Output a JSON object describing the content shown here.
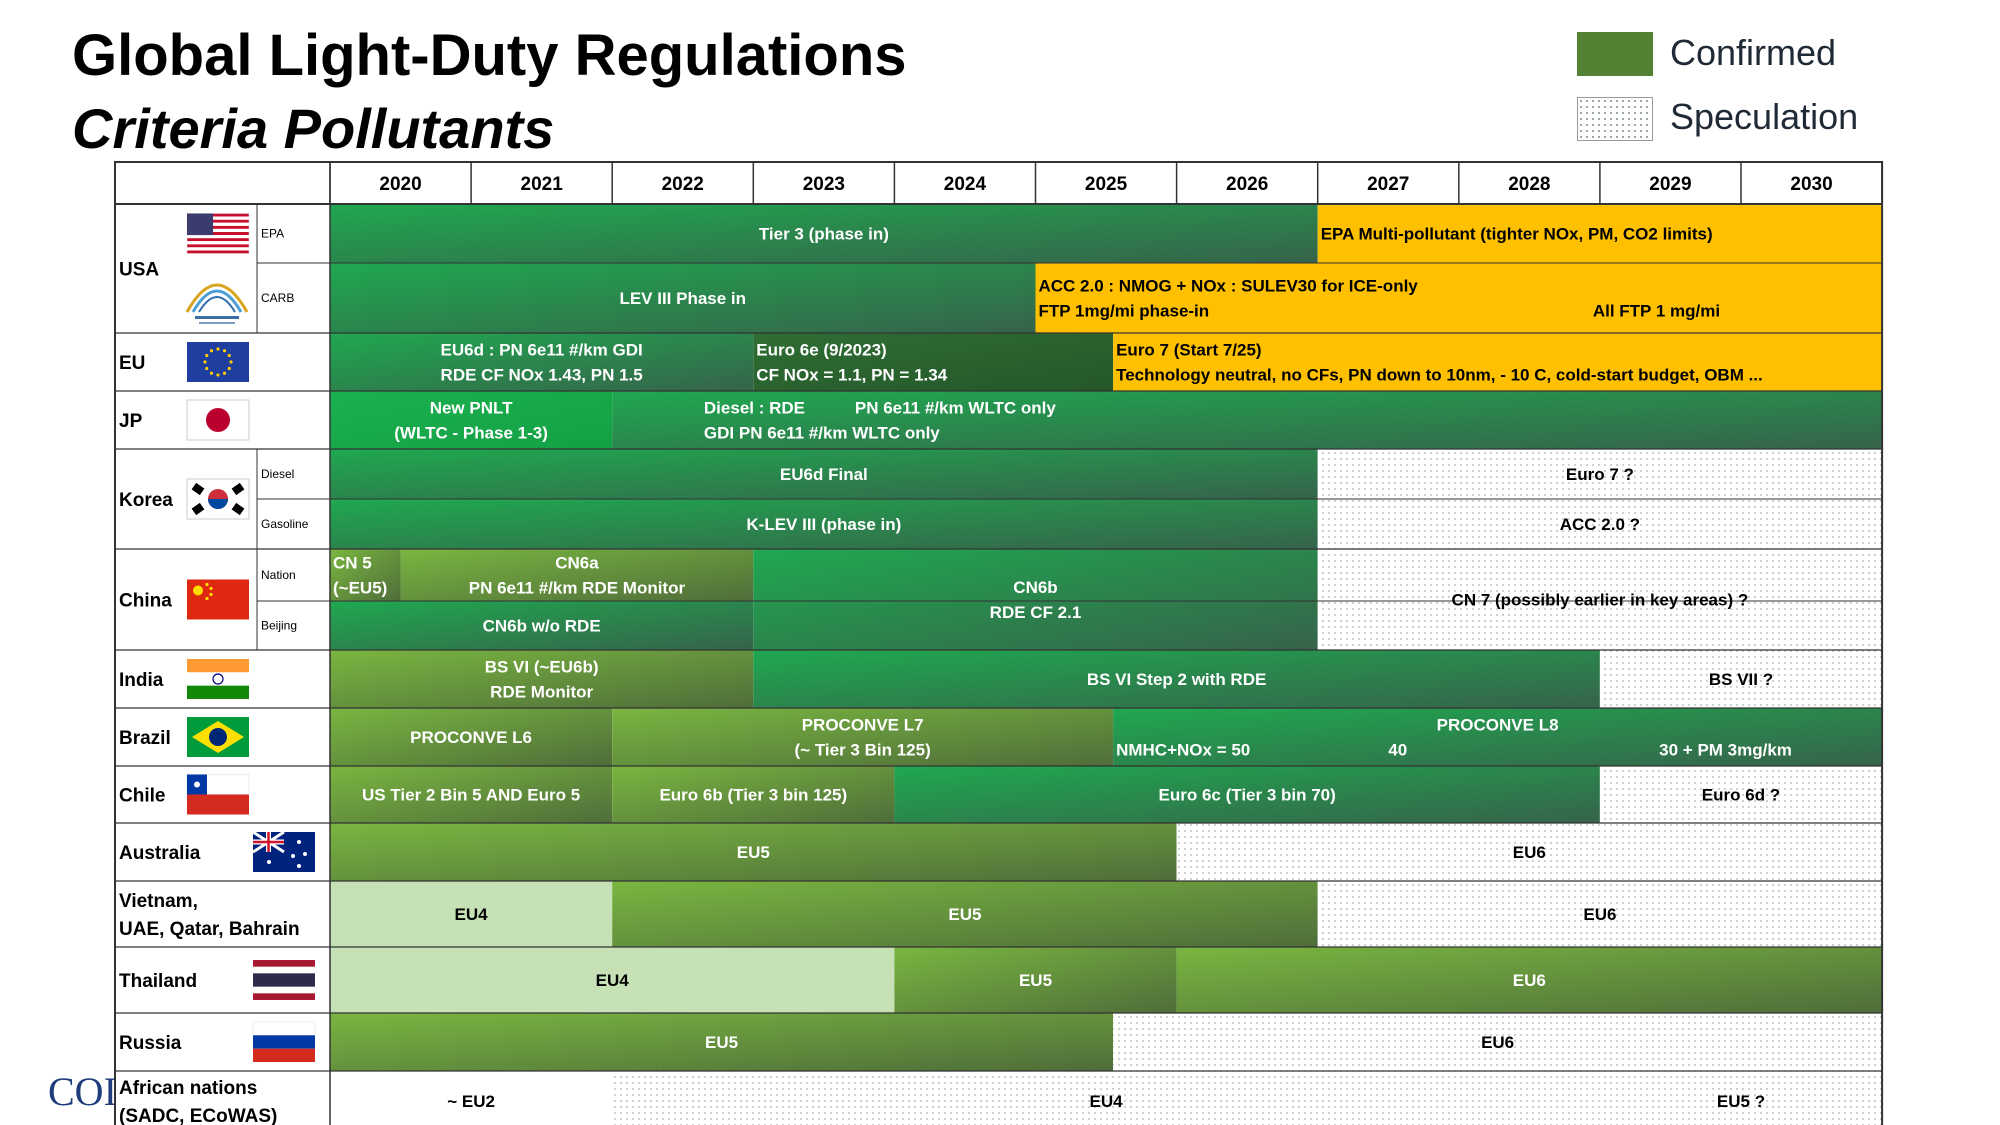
{
  "header": {
    "title": "Global Light-Duty Regulations",
    "subtitle": "Criteria Pollutants"
  },
  "legend": [
    {
      "label": "Confirmed",
      "color": "#548235"
    },
    {
      "label": "Speculation",
      "pattern": "dots"
    }
  ],
  "logo_text": "COI",
  "colors": {
    "confirmed_dark": "#2e6b3a",
    "confirmed_green": "#1ea84a",
    "olive": "#6e9a35",
    "light_green": "#c5e0b4",
    "yellow": "#ffc000",
    "speculation": "dotted"
  },
  "chart_data": {
    "type": "timeline",
    "years": [
      "2020",
      "2021",
      "2022",
      "2023",
      "2024",
      "2025",
      "2026",
      "2027",
      "2028",
      "2029",
      "2030"
    ],
    "regions": [
      {
        "id": "usa",
        "label": [
          "USA"
        ],
        "flag": "us-flag",
        "rows": [
          {
            "sub": "EPA"
          },
          {
            "sub": "CARB"
          }
        ]
      },
      {
        "id": "eu",
        "label": [
          "EU"
        ],
        "flag": "eu-flag",
        "rows": [
          {
            "sub": ""
          }
        ]
      },
      {
        "id": "jp",
        "label": [
          "JP"
        ],
        "flag": "jp-flag",
        "rows": [
          {
            "sub": ""
          }
        ]
      },
      {
        "id": "korea",
        "label": [
          "Korea"
        ],
        "flag": "kr-flag",
        "rows": [
          {
            "sub": "Diesel"
          },
          {
            "sub": "Gasoline"
          }
        ]
      },
      {
        "id": "china",
        "label": [
          "China"
        ],
        "flag": "cn-flag",
        "rows": [
          {
            "sub": "Nation"
          },
          {
            "sub": "Beijing"
          }
        ]
      },
      {
        "id": "india",
        "label": [
          "India"
        ],
        "flag": "in-flag",
        "rows": [
          {
            "sub": ""
          }
        ]
      },
      {
        "id": "brazil",
        "label": [
          "Brazil"
        ],
        "flag": "br-flag",
        "rows": [
          {
            "sub": ""
          }
        ]
      },
      {
        "id": "chile",
        "label": [
          "Chile"
        ],
        "flag": "cl-flag",
        "rows": [
          {
            "sub": ""
          }
        ]
      },
      {
        "id": "australia",
        "label": [
          "Australia"
        ],
        "flag": "au-flag",
        "rows": [
          {
            "sub": ""
          }
        ]
      },
      {
        "id": "vietnam",
        "label": [
          "Vietnam,",
          "UAE, Qatar, Bahrain"
        ],
        "flag": "",
        "rows": [
          {
            "sub": ""
          }
        ]
      },
      {
        "id": "thailand",
        "label": [
          "Thailand"
        ],
        "flag": "th-flag",
        "rows": [
          {
            "sub": ""
          }
        ]
      },
      {
        "id": "russia",
        "label": [
          "Russia"
        ],
        "flag": "ru-flag",
        "rows": [
          {
            "sub": ""
          }
        ]
      },
      {
        "id": "africa",
        "label": [
          "African nations",
          "(SADC, ECoWAS)"
        ],
        "flag": "",
        "rows": [
          {
            "sub": ""
          }
        ]
      }
    ],
    "bars": [
      {
        "region": "usa",
        "row": 0,
        "rowspan": 1,
        "start": 2020,
        "end": 2027,
        "style": "confirmed",
        "align": "center",
        "lines": [
          "Tier 3 (phase in)"
        ]
      },
      {
        "region": "usa",
        "row": 0,
        "rowspan": 1,
        "start": 2027,
        "end": 2031,
        "style": "yellow",
        "align": "left",
        "lines": [
          "EPA Multi-pollutant (tighter NOx, PM, CO2 limits)"
        ]
      },
      {
        "region": "usa",
        "row": 1,
        "rowspan": 1,
        "start": 2020,
        "end": 2025,
        "style": "confirmed",
        "align": "center",
        "lines": [
          "LEV III Phase in"
        ]
      },
      {
        "region": "usa",
        "row": 1,
        "rowspan": 1,
        "start": 2025,
        "end": 2031,
        "style": "yellow",
        "align": "left",
        "lines": [
          "ACC 2.0 : NMOG + NOx : SULEV30 for ICE-only",
          "FTP 1mg/mi phase-in"
        ]
      },
      {
        "region": "usa",
        "row": 1,
        "rowspan": 1,
        "start": 2025,
        "end": 2031,
        "style": "overlay",
        "align": "left",
        "textYear": 2028.95,
        "lines": [
          "",
          "All FTP 1 mg/mi"
        ]
      },
      {
        "region": "eu",
        "row": 0,
        "rowspan": 1,
        "start": 2020,
        "end": 2023,
        "style": "confirmed",
        "align": "center",
        "lines": [
          "EU6d : PN 6e11 #/km GDI",
          "RDE CF NOx 1.43, PN 1.5"
        ]
      },
      {
        "region": "eu",
        "row": 0,
        "rowspan": 1,
        "start": 2023,
        "end": 2025.55,
        "style": "dark",
        "align": "left",
        "lines": [
          "Euro 6e (9/2023)",
          "CF NOx = 1.1, PN = 1.34"
        ]
      },
      {
        "region": "eu",
        "row": 0,
        "rowspan": 1,
        "start": 2025.55,
        "end": 2031,
        "style": "yellow",
        "align": "left",
        "lines": [
          "Euro 7 (Start 7/25)",
          "Technology neutral, no CFs, PN down to 10nm, - 10 C, cold-start budget, OBM ..."
        ]
      },
      {
        "region": "jp",
        "row": 0,
        "rowspan": 1,
        "start": 2020,
        "end": 2022,
        "style": "bright",
        "align": "center",
        "lines": [
          "New PNLT",
          "(WLTC - Phase 1-3)"
        ]
      },
      {
        "region": "jp",
        "row": 0,
        "rowspan": 1,
        "start": 2022,
        "end": 2031,
        "style": "confirmed",
        "align": "left",
        "textYear": 2022.65,
        "lines": [
          "Diesel : RDE",
          "GDI PN 6e11 #/km WLTC only"
        ]
      },
      {
        "region": "jp",
        "row": 0,
        "rowspan": 1,
        "start": 2022,
        "end": 2031,
        "style": "overlay",
        "align": "left",
        "textYear": 2023.72,
        "lines": [
          "PN 6e11 #/km WLTC only",
          ""
        ]
      },
      {
        "region": "korea",
        "row": 0,
        "rowspan": 1,
        "start": 2020,
        "end": 2027,
        "style": "confirmed",
        "align": "center",
        "lines": [
          "EU6d Final"
        ]
      },
      {
        "region": "korea",
        "row": 0,
        "rowspan": 1,
        "start": 2027,
        "end": 2031,
        "style": "speculation",
        "align": "center",
        "lines": [
          "Euro 7 ?"
        ]
      },
      {
        "region": "korea",
        "row": 1,
        "rowspan": 1,
        "start": 2020,
        "end": 2027,
        "style": "confirmed",
        "align": "center",
        "lines": [
          "K-LEV III (phase in)"
        ]
      },
      {
        "region": "korea",
        "row": 1,
        "rowspan": 1,
        "start": 2027,
        "end": 2031,
        "style": "speculation",
        "align": "center",
        "lines": [
          "ACC 2.0 ?"
        ]
      },
      {
        "region": "china",
        "row": 0,
        "rowspan": 1,
        "start": 2020,
        "end": 2020.5,
        "style": "olive",
        "align": "left",
        "lines": [
          "CN 5",
          "(~EU5)"
        ]
      },
      {
        "region": "china",
        "row": 0,
        "rowspan": 1,
        "start": 2020.5,
        "end": 2023,
        "style": "olive",
        "align": "center",
        "lines": [
          "CN6a",
          "PN 6e11 #/km RDE Monitor"
        ]
      },
      {
        "region": "china",
        "row": 1,
        "rowspan": 1,
        "start": 2020,
        "end": 2023,
        "style": "confirmed",
        "align": "center",
        "lines": [
          "CN6b w/o RDE"
        ]
      },
      {
        "region": "china",
        "row": 0,
        "rowspan": 2,
        "start": 2023,
        "end": 2027,
        "style": "confirmed",
        "align": "center",
        "lines": [
          "CN6b",
          "RDE CF 2.1"
        ]
      },
      {
        "region": "china",
        "row": 0,
        "rowspan": 2,
        "start": 2027,
        "end": 2031,
        "style": "speculation",
        "align": "center",
        "lines": [
          "CN 7 (possibly earlier in key areas) ?"
        ]
      },
      {
        "region": "india",
        "row": 0,
        "rowspan": 1,
        "start": 2020,
        "end": 2023,
        "style": "olive",
        "align": "center",
        "lines": [
          "BS VI (~EU6b)",
          "RDE Monitor"
        ]
      },
      {
        "region": "india",
        "row": 0,
        "rowspan": 1,
        "start": 2023,
        "end": 2029,
        "style": "confirmed",
        "align": "center",
        "lines": [
          "BS VI Step 2 with RDE"
        ]
      },
      {
        "region": "india",
        "row": 0,
        "rowspan": 1,
        "start": 2029,
        "end": 2031,
        "style": "speculation",
        "align": "center",
        "lines": [
          "BS VII ?"
        ]
      },
      {
        "region": "brazil",
        "row": 0,
        "rowspan": 1,
        "start": 2020,
        "end": 2022,
        "style": "olive",
        "align": "center",
        "lines": [
          "PROCONVE L6"
        ]
      },
      {
        "region": "brazil",
        "row": 0,
        "rowspan": 1,
        "start": 2022,
        "end": 2025.55,
        "style": "olive",
        "align": "center",
        "lines": [
          "PROCONVE L7",
          "(~ Tier 3 Bin 125)"
        ]
      },
      {
        "region": "brazil",
        "row": 0,
        "rowspan": 1,
        "start": 2025.55,
        "end": 2031,
        "style": "confirmed",
        "align": "center",
        "lines": [
          "PROCONVE L8",
          ""
        ]
      },
      {
        "region": "brazil",
        "row": 0,
        "rowspan": 1,
        "start": 2025.55,
        "end": 2031,
        "style": "overlay",
        "align": "left",
        "lines": [
          "",
          "NMHC+NOx = 50"
        ]
      },
      {
        "region": "brazil",
        "row": 0,
        "rowspan": 1,
        "start": 2025.55,
        "end": 2031,
        "style": "overlay",
        "align": "left",
        "textYear": 2027.5,
        "lines": [
          "",
          "40"
        ]
      },
      {
        "region": "brazil",
        "row": 0,
        "rowspan": 1,
        "start": 2025.55,
        "end": 2031,
        "style": "overlay",
        "align": "left",
        "textYear": 2029.42,
        "lines": [
          "",
          "30  + PM 3mg/km"
        ]
      },
      {
        "region": "chile",
        "row": 0,
        "rowspan": 1,
        "start": 2020,
        "end": 2022,
        "style": "olive",
        "align": "center",
        "lines": [
          "US Tier 2 Bin 5  AND Euro 5"
        ]
      },
      {
        "region": "chile",
        "row": 0,
        "rowspan": 1,
        "start": 2022,
        "end": 2024,
        "style": "olive",
        "align": "center",
        "lines": [
          "Euro 6b (Tier 3 bin 125)"
        ]
      },
      {
        "region": "chile",
        "row": 0,
        "rowspan": 1,
        "start": 2024,
        "end": 2029,
        "style": "confirmed",
        "align": "center",
        "lines": [
          "Euro 6c (Tier 3 bin 70)"
        ]
      },
      {
        "region": "chile",
        "row": 0,
        "rowspan": 1,
        "start": 2029,
        "end": 2031,
        "style": "speculation",
        "align": "center",
        "lines": [
          "Euro 6d ?"
        ]
      },
      {
        "region": "australia",
        "row": 0,
        "rowspan": 1,
        "start": 2020,
        "end": 2026,
        "style": "olive",
        "align": "center",
        "lines": [
          "EU5"
        ]
      },
      {
        "region": "australia",
        "row": 0,
        "rowspan": 1,
        "start": 2026,
        "end": 2031,
        "style": "speculation",
        "align": "center",
        "lines": [
          "EU6"
        ]
      },
      {
        "region": "vietnam",
        "row": 0,
        "rowspan": 1,
        "start": 2020,
        "end": 2022,
        "style": "light",
        "align": "center",
        "lines": [
          "EU4"
        ]
      },
      {
        "region": "vietnam",
        "row": 0,
        "rowspan": 1,
        "start": 2022,
        "end": 2027,
        "style": "olive",
        "align": "center",
        "lines": [
          "EU5"
        ]
      },
      {
        "region": "vietnam",
        "row": 0,
        "rowspan": 1,
        "start": 2027,
        "end": 2031,
        "style": "speculation",
        "align": "center",
        "lines": [
          "EU6"
        ]
      },
      {
        "region": "thailand",
        "row": 0,
        "rowspan": 1,
        "start": 2020,
        "end": 2024,
        "style": "light",
        "align": "center",
        "lines": [
          "EU4"
        ]
      },
      {
        "region": "thailand",
        "row": 0,
        "rowspan": 1,
        "start": 2024,
        "end": 2026,
        "style": "olive",
        "align": "center",
        "lines": [
          "EU5"
        ]
      },
      {
        "region": "thailand",
        "row": 0,
        "rowspan": 1,
        "start": 2026,
        "end": 2031,
        "style": "olive",
        "align": "center",
        "lines": [
          "EU6"
        ]
      },
      {
        "region": "russia",
        "row": 0,
        "rowspan": 1,
        "start": 2020,
        "end": 2025.55,
        "style": "olive",
        "align": "center",
        "lines": [
          "EU5"
        ]
      },
      {
        "region": "russia",
        "row": 0,
        "rowspan": 1,
        "start": 2025.55,
        "end": 2031,
        "style": "speculation",
        "align": "center",
        "lines": [
          "EU6"
        ]
      },
      {
        "region": "africa",
        "row": 0,
        "rowspan": 1,
        "start": 2020,
        "end": 2022,
        "style": "white",
        "align": "center",
        "lines": [
          "~ EU2"
        ]
      },
      {
        "region": "africa",
        "row": 0,
        "rowspan": 1,
        "start": 2022,
        "end": 2029,
        "style": "speculation",
        "align": "center",
        "lines": [
          "EU4"
        ]
      },
      {
        "region": "africa",
        "row": 0,
        "rowspan": 1,
        "start": 2029,
        "end": 2031,
        "style": "speculation",
        "align": "center",
        "lines": [
          "EU5 ?"
        ]
      }
    ]
  }
}
